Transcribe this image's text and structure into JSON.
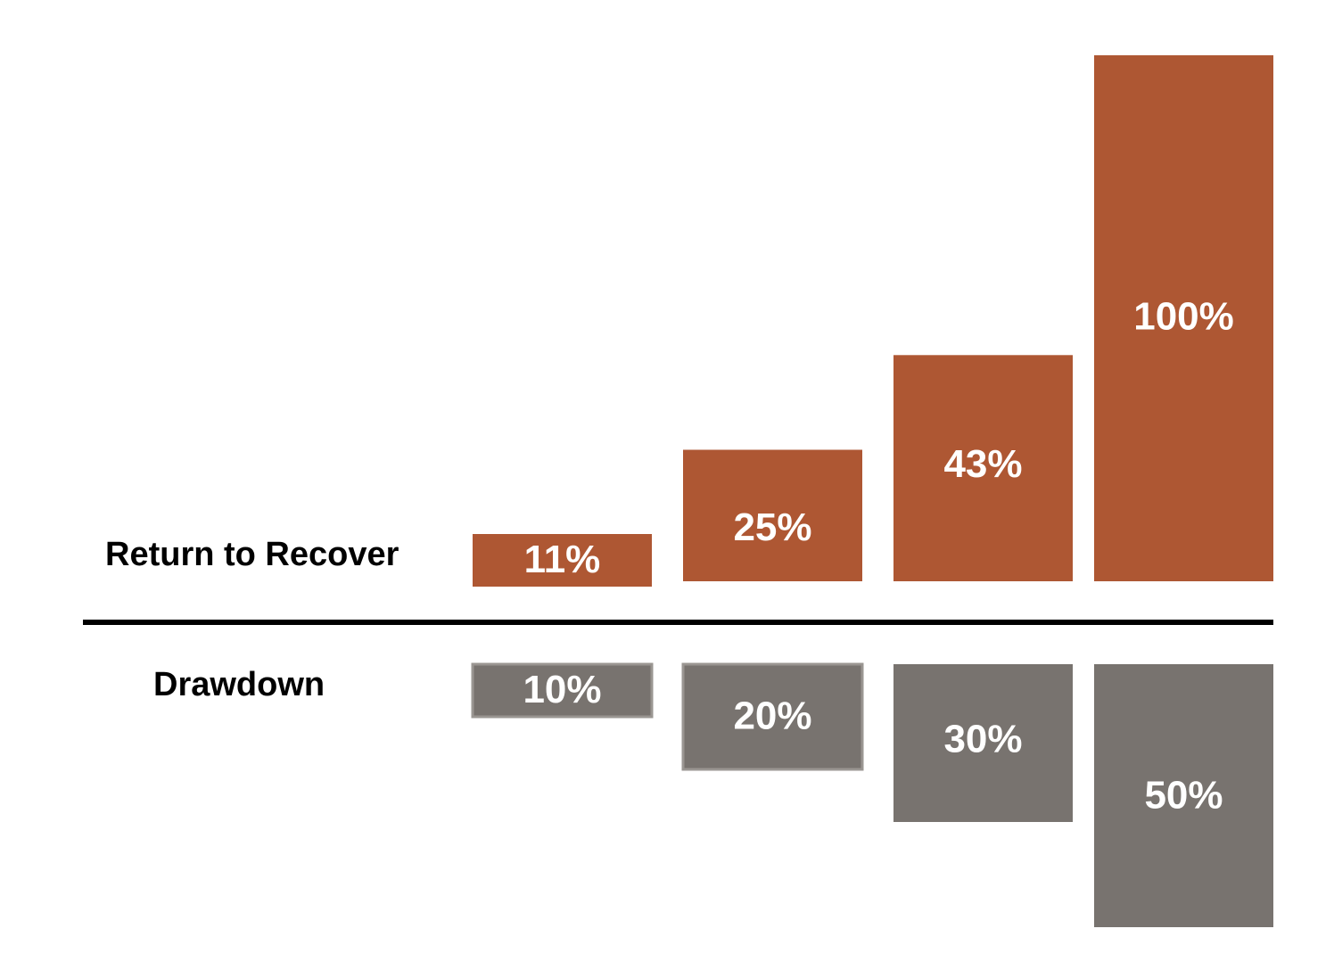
{
  "chart_data": {
    "type": "bar",
    "layout": "diverging",
    "series": [
      {
        "name": "Return to Recover",
        "values": [
          11,
          25,
          43,
          100
        ],
        "labels": [
          "11%",
          "25%",
          "43%",
          "100%"
        ],
        "color": "#AE5733",
        "direction": "up"
      },
      {
        "name": "Drawdown",
        "values": [
          10,
          20,
          30,
          50
        ],
        "labels": [
          "10%",
          "20%",
          "30%",
          "50%"
        ],
        "color": "#78736F",
        "direction": "down"
      }
    ],
    "title": "",
    "xlabel": "",
    "ylabel": "",
    "grid": false,
    "legend": "none"
  }
}
